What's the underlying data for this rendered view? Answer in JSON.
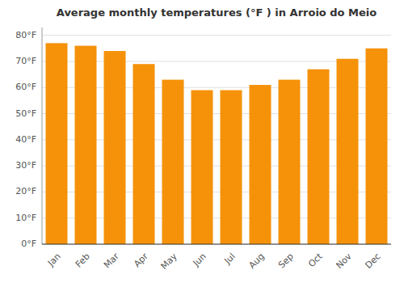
{
  "chart_data": {
    "type": "bar",
    "title": "Average monthly temperatures (°F ) in Arroio do Meio",
    "categories": [
      "Jan",
      "Feb",
      "Mar",
      "Apr",
      "May",
      "Jun",
      "Jul",
      "Aug",
      "Sep",
      "Oct",
      "Nov",
      "Dec"
    ],
    "values": [
      77,
      76,
      74,
      69,
      63,
      59,
      59,
      61,
      63,
      67,
      71,
      75
    ],
    "color": "#F5920A",
    "ylim": [
      0,
      83
    ],
    "yticks": [
      {
        "value": 0,
        "label": "0°F"
      },
      {
        "value": 10,
        "label": "10°F"
      },
      {
        "value": 20,
        "label": "20°F"
      },
      {
        "value": 30,
        "label": "30°F"
      },
      {
        "value": 40,
        "label": "40°F"
      },
      {
        "value": 50,
        "label": "50°F"
      },
      {
        "value": 60,
        "label": "60°F"
      },
      {
        "value": 70,
        "label": "70°F"
      },
      {
        "value": 80,
        "label": "80°F"
      }
    ],
    "grid": true
  }
}
